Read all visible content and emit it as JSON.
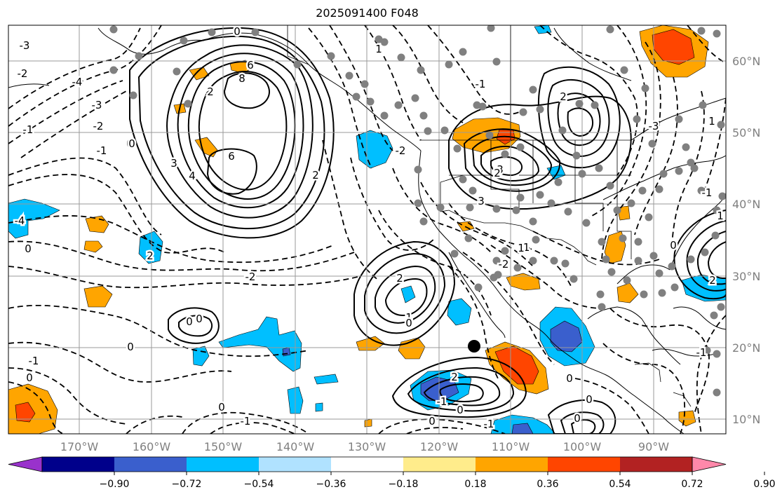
{
  "title": "2025091400 F048",
  "lon_labels": [
    "170°W",
    "160°W",
    "150°W",
    "140°W",
    "130°W",
    "120°W",
    "110°W",
    "100°W",
    "90°W"
  ],
  "lat_labels": [
    "60°N",
    "50°N",
    "40°N",
    "30°N",
    "20°N",
    "10°N"
  ],
  "contour_labels": [
    "0",
    "8",
    "6",
    "6",
    "4",
    "3",
    "2",
    "1",
    "0",
    "-4",
    "-3",
    "-2",
    "-1",
    "-1",
    "-2",
    "-3",
    "-4",
    "0",
    "2",
    "3",
    "2",
    "3",
    "-3",
    "2",
    "-1",
    "-2",
    "0",
    "1",
    "2",
    "1",
    "-1",
    "0",
    "-1",
    "1",
    "0",
    "0",
    "0",
    "0",
    "-2",
    "0",
    "-1",
    "0",
    "-1",
    "0",
    "-1",
    "0",
    "2",
    "1",
    "0",
    "-1",
    "-2",
    "0",
    "2",
    "2",
    "-1",
    "0"
  ],
  "colorbar": {
    "colors": [
      "#9932CC",
      "#00008B",
      "#3A5FCD",
      "#00BFFF",
      "#B0E2FF",
      "#FFFFFF",
      "#FFEC8B",
      "#FFA500",
      "#FF4500",
      "#B22222",
      "#FF88AA"
    ],
    "tick_labels": [
      "−0.90",
      "−0.72",
      "−0.54",
      "−0.36",
      "−0.18",
      "0.18",
      "0.36",
      "0.54",
      "0.72",
      "0.90"
    ]
  }
}
